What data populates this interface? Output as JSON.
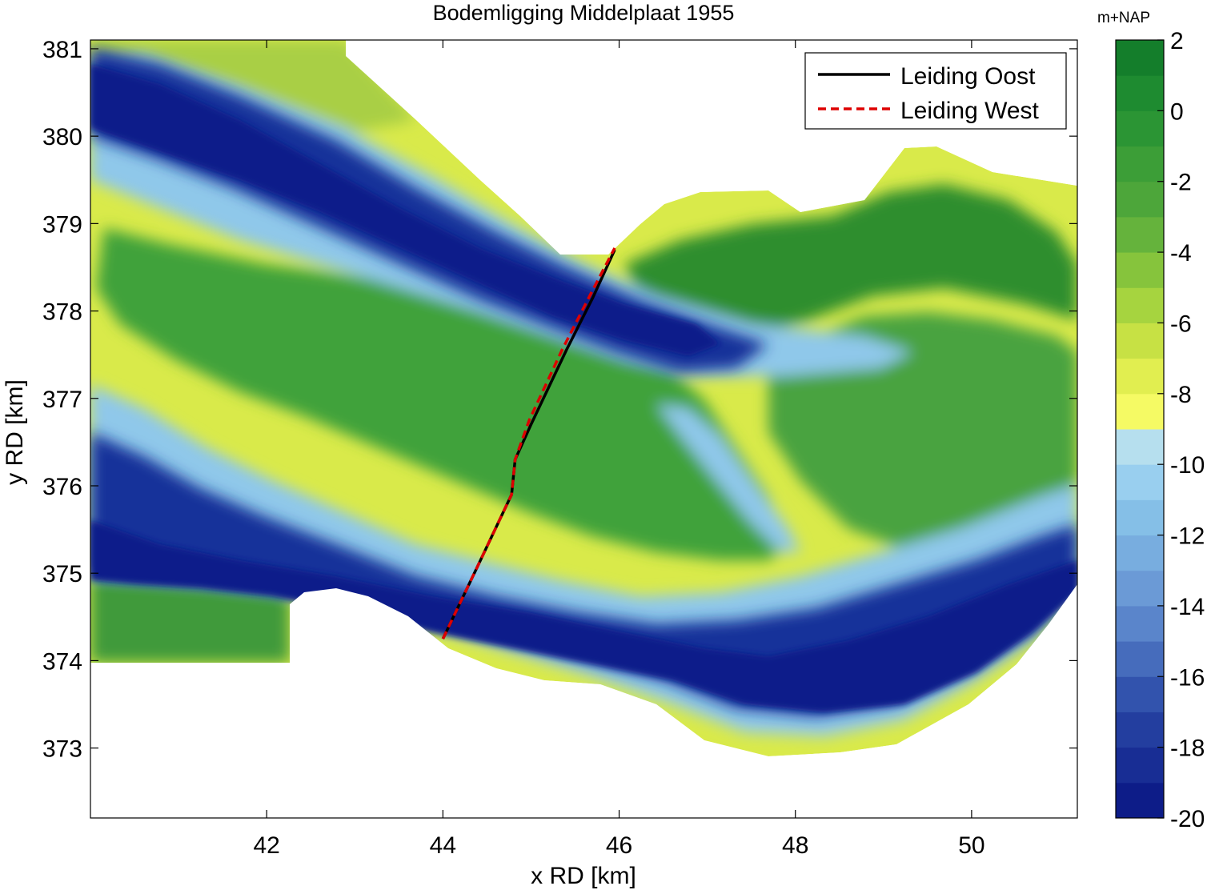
{
  "chart_data": {
    "type": "heatmap",
    "title": "Bodemligging Middelplaat 1955",
    "xlabel": "x RD [km]",
    "ylabel": "y RD [km]",
    "xlim": [
      40.0,
      51.2
    ],
    "ylim": [
      372.2,
      381.1
    ],
    "xticks": [
      42,
      44,
      46,
      48,
      50
    ],
    "yticks": [
      373,
      374,
      375,
      376,
      377,
      378,
      379,
      380,
      381
    ],
    "grid": false,
    "legend": "top-right",
    "colorbar": {
      "label": "m+NAP",
      "range": [
        -20,
        2
      ],
      "ticks": [
        2,
        0,
        -2,
        -4,
        -6,
        -8,
        -10,
        -12,
        -14,
        -16,
        -18,
        -20
      ],
      "levels": 22
    },
    "series": [
      {
        "name": "Leiding Oost",
        "style": "solid",
        "color": "#000000",
        "x": [
          44.0,
          44.38,
          44.78,
          44.82,
          45.0,
          45.4,
          45.7,
          45.95
        ],
        "y": [
          374.25,
          375.05,
          375.9,
          376.3,
          376.7,
          377.55,
          378.15,
          378.7
        ]
      },
      {
        "name": "Leiding West",
        "style": "dashed",
        "color": "#dd0000",
        "x": [
          44.0,
          44.38,
          44.78,
          44.82,
          44.98,
          45.35,
          45.68,
          45.95
        ],
        "y": [
          374.25,
          375.05,
          375.9,
          376.3,
          376.75,
          377.55,
          378.2,
          378.72
        ]
      }
    ]
  }
}
